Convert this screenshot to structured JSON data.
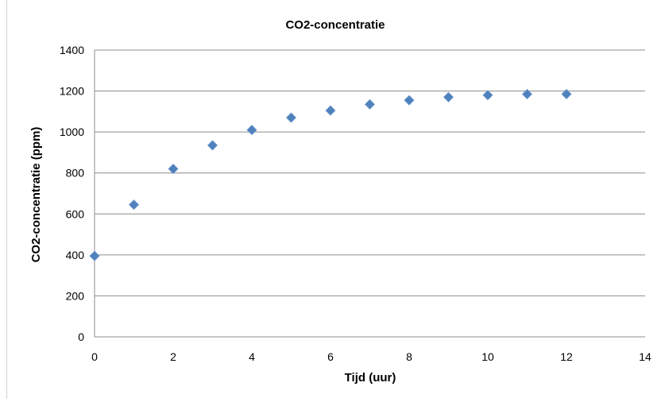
{
  "chart_data": {
    "type": "scatter",
    "title": "CO2-concentratie",
    "xlabel": "Tijd (uur)",
    "ylabel": "CO2-concentratie (ppm)",
    "xlim": [
      0,
      14
    ],
    "ylim": [
      0,
      1400
    ],
    "x_ticks": [
      "0",
      "2",
      "4",
      "6",
      "8",
      "10",
      "12",
      "14"
    ],
    "y_ticks": [
      "0",
      "200",
      "400",
      "600",
      "800",
      "1000",
      "1200",
      "1400"
    ],
    "grid": "horizontal",
    "series": [
      {
        "marker": "diamond",
        "color": "#4f81bd",
        "x": [
          0,
          1,
          2,
          3,
          4,
          5,
          6,
          7,
          8,
          9,
          10,
          11,
          12
        ],
        "y": [
          395,
          645,
          820,
          935,
          1010,
          1070,
          1105,
          1135,
          1155,
          1170,
          1180,
          1185,
          1185
        ]
      }
    ]
  }
}
